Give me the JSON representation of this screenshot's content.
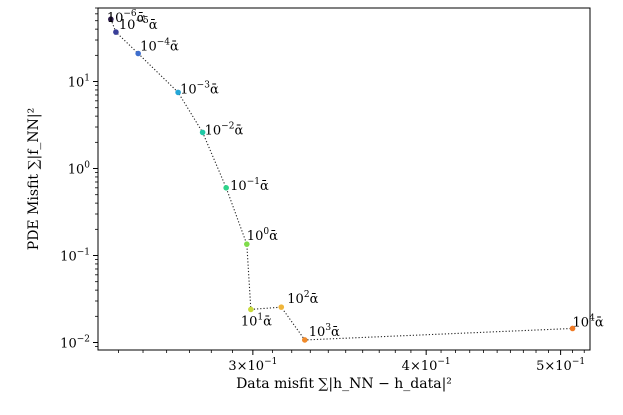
{
  "chart_data": {
    "type": "scatter",
    "xlabel": "Data misfit ∑|h_NN − h_data|²",
    "ylabel": "PDE Misfit ∑|f_NN|²",
    "x_scale": "log",
    "y_scale": "log",
    "xlim": [
      0.232,
      0.525
    ],
    "ylim": [
      0.0082,
      70
    ],
    "grid": false,
    "legend": "none",
    "x_ticks": [
      {
        "value": 0.3,
        "base": "3×10",
        "exp": "−1"
      },
      {
        "value": 0.4,
        "base": "4×10",
        "exp": "−1"
      },
      {
        "value": 0.5,
        "base": "5×10",
        "exp": "−1"
      }
    ],
    "y_ticks": [
      {
        "value": 0.01,
        "base": "10",
        "exp": "−2"
      },
      {
        "value": 0.1,
        "base": "10",
        "exp": "−1"
      },
      {
        "value": 1,
        "base": "10",
        "exp": "0"
      },
      {
        "value": 10,
        "base": "10",
        "exp": "1"
      }
    ],
    "line_style": "dotted",
    "points": [
      {
        "x": 0.237,
        "y": 52,
        "base": "10",
        "exp": "−6",
        "suffix": "ᾱ",
        "color": "#2b1a4a"
      },
      {
        "x": 0.239,
        "y": 37,
        "base": "10",
        "exp": "−5",
        "suffix": "ᾱ",
        "color": "#3a3f99"
      },
      {
        "x": 0.248,
        "y": 21,
        "base": "10",
        "exp": "−4",
        "suffix": "ᾱ",
        "color": "#3f6fce"
      },
      {
        "x": 0.265,
        "y": 7.5,
        "base": "10",
        "exp": "−3",
        "suffix": "ᾱ",
        "color": "#24a6d6"
      },
      {
        "x": 0.276,
        "y": 2.6,
        "base": "10",
        "exp": "−2",
        "suffix": "ᾱ",
        "color": "#1fc9a6"
      },
      {
        "x": 0.287,
        "y": 0.6,
        "base": "10",
        "exp": "−1",
        "suffix": "ᾱ",
        "color": "#2ed38a"
      },
      {
        "x": 0.297,
        "y": 0.135,
        "base": "10",
        "exp": "0",
        "suffix": "ᾱ",
        "color": "#7fdc4a"
      },
      {
        "x": 0.299,
        "y": 0.024,
        "base": "10",
        "exp": "1",
        "suffix": "ᾱ",
        "color": "#c8d93a"
      },
      {
        "x": 0.3145,
        "y": 0.0255,
        "base": "10",
        "exp": "2",
        "suffix": "ᾱ",
        "color": "#f0b53a"
      },
      {
        "x": 0.327,
        "y": 0.0107,
        "base": "10",
        "exp": "3",
        "suffix": "ᾱ",
        "color": "#f08a2a"
      },
      {
        "x": 0.51,
        "y": 0.0145,
        "base": "10",
        "exp": "4",
        "suffix": "ᾱ",
        "color": "#f07a24"
      }
    ]
  }
}
